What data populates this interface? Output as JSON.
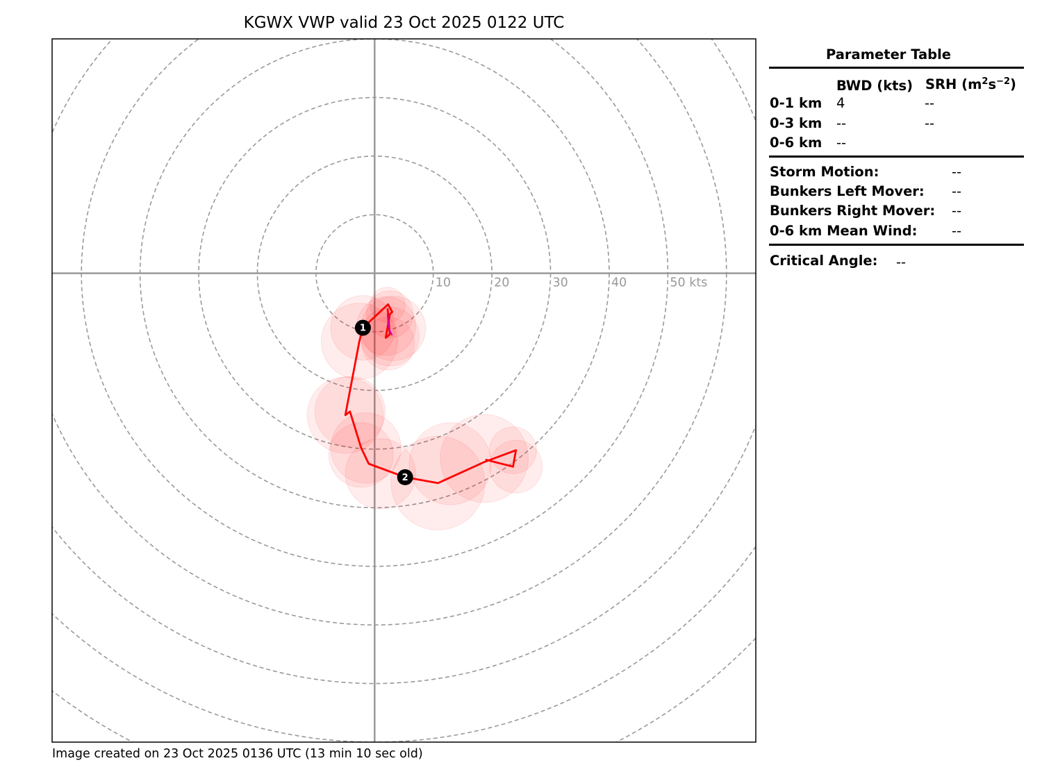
{
  "title": "KGWX VWP valid 23 Oct 2025 0122 UTC",
  "footer": "Image created on 23 Oct 2025 0136 UTC (13 min 10 sec old)",
  "chart_data": {
    "type": "line",
    "plot": "hodograph",
    "xlim": [
      -55,
      65
    ],
    "ylim": [
      -80,
      40
    ],
    "ring_speeds_kts": [
      10,
      20,
      30,
      40,
      50,
      60,
      70,
      80,
      90
    ],
    "ring_labels": [
      "10",
      "20",
      "30",
      "40",
      "50 kts"
    ],
    "grid": true,
    "series": [
      {
        "color": "#ff0000",
        "u": [
          2.2,
          2.6,
          1.9,
          2.6,
          3.0,
          2.3,
          -2.0,
          -2.6,
          -5.0,
          -4.2,
          -2.3,
          -1.0,
          5.2,
          10.8,
          18.7,
          24.1,
          23.6,
          18.9
        ],
        "v": [
          -6.0,
          -10.4,
          -11.0,
          -7.0,
          -6.6,
          -5.3,
          -9.3,
          -11.6,
          -24.2,
          -23.6,
          -29.8,
          -32.5,
          -34.8,
          -35.8,
          -32.2,
          -30.2,
          -33.0,
          -31.8
        ]
      },
      {
        "color": "#cc00cc",
        "u": [
          2.2,
          2.3,
          2.6,
          3.0
        ],
        "v": [
          -7.0,
          -8.5,
          -9.8,
          -10.6
        ]
      }
    ],
    "uncertainty_circles": {
      "color": "#ff0000",
      "u": [
        2.2,
        2.6,
        2.0,
        3.2,
        2.6,
        2.3,
        -2.0,
        -2.6,
        -4.2,
        -5.0,
        -1.5,
        -2.3,
        1.0,
        10.8,
        12.9,
        18.7,
        23.6,
        24.1
      ],
      "v": [
        -5.4,
        -7.0,
        -9.0,
        -9.4,
        -10.8,
        -12.0,
        -9.3,
        -11.6,
        -23.6,
        -24.2,
        -29.8,
        -31.0,
        -34.2,
        -35.8,
        -32.5,
        -31.6,
        -30.2,
        -33.0
      ],
      "r": [
        3.0,
        4.0,
        5.0,
        5.5,
        5.0,
        4.5,
        5.5,
        6.5,
        6.0,
        6.5,
        6.0,
        5.5,
        6.0,
        8.0,
        7.0,
        7.5,
        4.0,
        4.5
      ]
    },
    "height_markers": [
      {
        "label": "1",
        "u": -2.0,
        "v": -9.3
      },
      {
        "label": "2",
        "u": 5.2,
        "v": -34.8
      }
    ]
  },
  "table": {
    "title": "Parameter Table",
    "col_bwd": "BWD (kts)",
    "col_srh_prefix": "SRH (m",
    "col_srh_sup1": "2",
    "col_srh_mid": "s",
    "col_srh_sup2": "−2",
    "col_srh_suffix": ")",
    "rows": [
      {
        "label": "0-1 km",
        "bwd": "4",
        "srh": "--"
      },
      {
        "label": "0-3 km",
        "bwd": "--",
        "srh": "--"
      },
      {
        "label": "0-6 km",
        "bwd": "--",
        "srh": ""
      }
    ],
    "motion": [
      {
        "label": "Storm Motion:",
        "value": "--"
      },
      {
        "label": "Bunkers Left Mover:",
        "value": "--"
      },
      {
        "label": "Bunkers Right Mover:",
        "value": "--"
      },
      {
        "label": "0-6 km Mean Wind:",
        "value": "--"
      }
    ],
    "critical_label": "Critical Angle:",
    "critical_value": "--"
  }
}
